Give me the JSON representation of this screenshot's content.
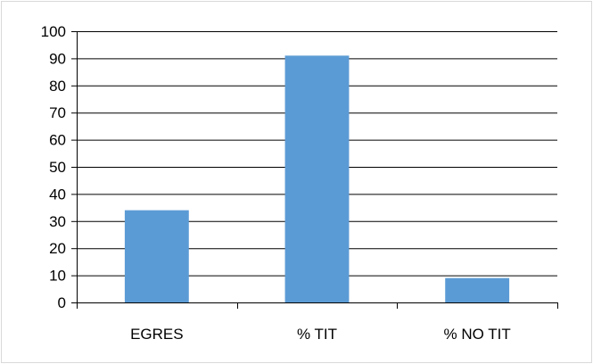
{
  "chart_data": {
    "type": "bar",
    "categories": [
      "EGRES",
      "% TIT",
      "% NO TIT"
    ],
    "values": [
      34,
      91,
      9
    ],
    "title": "",
    "xlabel": "",
    "ylabel": "",
    "ylim": [
      0,
      100
    ],
    "yticks": [
      0,
      10,
      20,
      30,
      40,
      50,
      60,
      70,
      80,
      90,
      100
    ],
    "grid": true,
    "legend": "none",
    "colors": {
      "bar": "#5b9bd5",
      "grid": "#000000",
      "axis": "#000000",
      "border": "#d9d9d9"
    }
  }
}
